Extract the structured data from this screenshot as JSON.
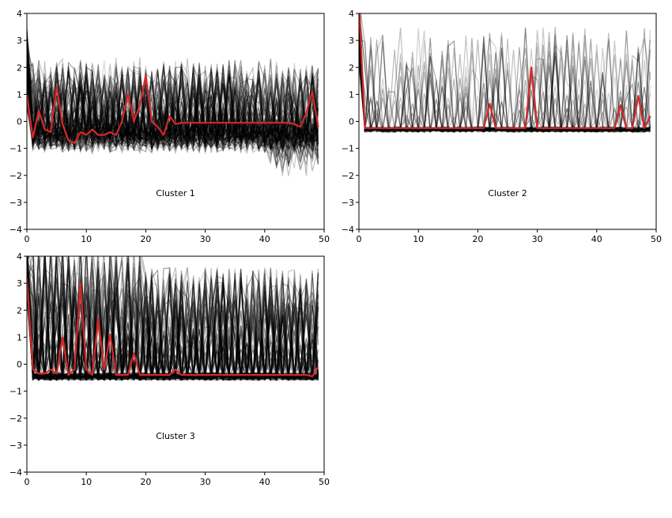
{
  "chart_data": [
    {
      "type": "line",
      "annotation": "Cluster 1",
      "xlim": [
        0,
        50
      ],
      "ylim": [
        -4,
        4
      ],
      "x_ticks": [
        0,
        10,
        20,
        30,
        40,
        50
      ],
      "y_ticks": [
        -4,
        -3,
        -2,
        -1,
        0,
        1,
        2,
        3,
        4
      ],
      "grid": false,
      "background_series_color": "#000000",
      "highlight_color": "#d62728",
      "highlight": {
        "x": [
          0,
          1,
          2,
          3,
          4,
          5,
          6,
          7,
          8,
          9,
          10,
          11,
          12,
          13,
          14,
          15,
          16,
          17,
          18,
          19,
          20,
          21,
          22,
          23,
          24,
          25,
          26,
          27,
          28,
          29,
          30,
          31,
          32,
          33,
          34,
          35,
          36,
          37,
          38,
          39,
          40,
          41,
          42,
          43,
          44,
          45,
          46,
          47,
          48,
          49
        ],
        "y": [
          1.0,
          -0.6,
          0.4,
          -0.3,
          -0.4,
          1.3,
          -0.1,
          -0.7,
          -0.8,
          -0.4,
          -0.5,
          -0.3,
          -0.5,
          -0.5,
          -0.4,
          -0.5,
          0.0,
          1.0,
          0.0,
          0.6,
          1.7,
          0.0,
          -0.2,
          -0.5,
          0.2,
          -0.1,
          -0.05,
          -0.05,
          -0.05,
          -0.05,
          -0.05,
          -0.05,
          -0.05,
          -0.05,
          -0.05,
          -0.05,
          -0.05,
          -0.05,
          -0.05,
          -0.05,
          -0.05,
          -0.05,
          -0.05,
          -0.05,
          -0.05,
          -0.1,
          -0.2,
          0.3,
          1.1,
          -0.2
        ]
      }
    },
    {
      "type": "line",
      "annotation": "Cluster 2",
      "xlim": [
        0,
        50
      ],
      "ylim": [
        -4,
        4
      ],
      "x_ticks": [
        0,
        10,
        20,
        30,
        40,
        50
      ],
      "y_ticks": [
        -4,
        -3,
        -2,
        -1,
        0,
        1,
        2,
        3,
        4
      ],
      "grid": false,
      "background_series_color": "#000000",
      "highlight_color": "#d62728",
      "highlight": {
        "x": [
          0,
          1,
          2,
          3,
          4,
          5,
          6,
          7,
          8,
          9,
          10,
          11,
          12,
          13,
          14,
          15,
          16,
          17,
          18,
          19,
          20,
          21,
          22,
          23,
          24,
          25,
          26,
          27,
          28,
          29,
          30,
          31,
          32,
          33,
          34,
          35,
          36,
          37,
          38,
          39,
          40,
          41,
          42,
          43,
          44,
          45,
          46,
          47,
          48,
          49
        ],
        "y": [
          4.5,
          -0.25,
          -0.25,
          -0.25,
          -0.25,
          -0.25,
          -0.25,
          -0.25,
          -0.25,
          -0.25,
          -0.25,
          -0.25,
          -0.25,
          -0.25,
          -0.25,
          -0.25,
          -0.25,
          -0.25,
          -0.25,
          -0.25,
          -0.25,
          -0.25,
          0.65,
          -0.25,
          -0.25,
          -0.25,
          -0.25,
          -0.25,
          -0.25,
          2.0,
          -0.25,
          -0.25,
          -0.25,
          -0.25,
          -0.25,
          -0.25,
          -0.25,
          -0.25,
          -0.25,
          -0.25,
          -0.25,
          -0.25,
          -0.25,
          -0.25,
          0.6,
          -0.25,
          -0.25,
          0.95,
          -0.25,
          0.2
        ]
      }
    },
    {
      "type": "line",
      "annotation": "Cluster 3",
      "xlim": [
        0,
        50
      ],
      "ylim": [
        -4,
        4
      ],
      "x_ticks": [
        0,
        10,
        20,
        30,
        40,
        50
      ],
      "y_ticks": [
        -4,
        -3,
        -2,
        -1,
        0,
        1,
        2,
        3,
        4
      ],
      "grid": false,
      "background_series_color": "#000000",
      "highlight_color": "#d62728",
      "highlight": {
        "x": [
          0,
          1,
          2,
          3,
          4,
          5,
          6,
          7,
          8,
          9,
          10,
          11,
          12,
          13,
          14,
          15,
          16,
          17,
          18,
          19,
          20,
          21,
          22,
          23,
          24,
          25,
          26,
          27,
          28,
          29,
          30,
          31,
          32,
          33,
          34,
          35,
          36,
          37,
          38,
          39,
          40,
          41,
          42,
          43,
          44,
          45,
          46,
          47,
          48,
          49
        ],
        "y": [
          3.2,
          -0.2,
          -0.35,
          -0.35,
          -0.2,
          -0.35,
          1.0,
          -0.4,
          -0.2,
          3.0,
          -0.2,
          -0.4,
          1.7,
          -0.2,
          1.1,
          -0.4,
          -0.4,
          -0.4,
          0.4,
          -0.4,
          -0.4,
          -0.4,
          -0.4,
          -0.4,
          -0.4,
          -0.2,
          -0.4,
          -0.4,
          -0.4,
          -0.4,
          -0.4,
          -0.4,
          -0.4,
          -0.4,
          -0.4,
          -0.4,
          -0.4,
          -0.4,
          -0.4,
          -0.4,
          -0.4,
          -0.4,
          -0.4,
          -0.4,
          -0.4,
          -0.4,
          -0.4,
          -0.4,
          -0.45,
          -0.1
        ]
      }
    }
  ]
}
